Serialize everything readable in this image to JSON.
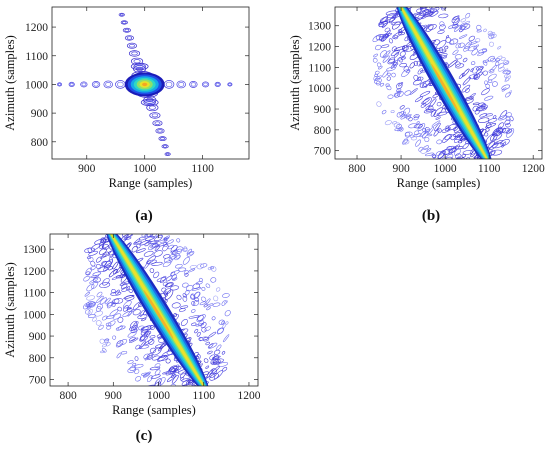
{
  "chart_data": [
    {
      "type": "contour",
      "panel_label": "(a)",
      "xlabel": "Range (samples)",
      "ylabel": "Azimuth (samples)",
      "xlim": [
        840,
        1180
      ],
      "ylim": [
        740,
        1270
      ],
      "xticks": [
        900,
        1000,
        1100
      ],
      "yticks": [
        800,
        900,
        1000,
        1100,
        1200
      ],
      "peak": [
        1000,
        1000
      ],
      "sidelobe_axes": [
        "horizontal",
        "steep-diagonal"
      ]
    },
    {
      "type": "contour",
      "panel_label": "(b)",
      "xlabel": "Range (samples)",
      "ylabel": "Azimuth (samples)",
      "xlim": [
        750,
        1220
      ],
      "ylim": [
        660,
        1390
      ],
      "xticks": [
        800,
        900,
        1000,
        1100,
        1200
      ],
      "yticks": [
        700,
        800,
        900,
        1000,
        1100,
        1200,
        1300
      ],
      "peak": [
        1000,
        1000
      ],
      "ridge_from": [
        900,
        1390
      ],
      "ridge_to": [
        1095,
        660
      ]
    },
    {
      "type": "contour",
      "panel_label": "(c)",
      "xlabel": "Range (samples)",
      "ylabel": "Azimuth (samples)",
      "xlim": [
        760,
        1220
      ],
      "ylim": [
        670,
        1370
      ],
      "xticks": [
        800,
        900,
        1000,
        1100,
        1200
      ],
      "yticks": [
        700,
        800,
        900,
        1000,
        1100,
        1200,
        1300
      ],
      "peak": [
        1000,
        1000
      ],
      "ridge_from": [
        895,
        1370
      ],
      "ridge_to": [
        1100,
        670
      ]
    }
  ]
}
